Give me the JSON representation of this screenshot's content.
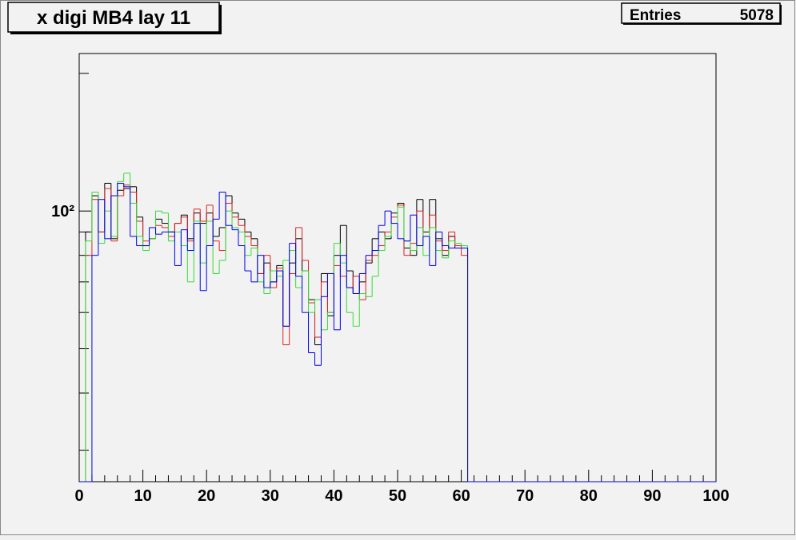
{
  "chart_data": {
    "type": "histogram",
    "title": "x digi MB4 lay 11",
    "stats": {
      "label": "Entries",
      "value": 5078
    },
    "bins": [
      0,
      1,
      2,
      3,
      4,
      5,
      6,
      7,
      8,
      9,
      10,
      11,
      12,
      13,
      14,
      15,
      16,
      17,
      18,
      19,
      20,
      21,
      22,
      23,
      24,
      25,
      26,
      27,
      28,
      29,
      30,
      31,
      32,
      33,
      34,
      35,
      36,
      37,
      38,
      39,
      40,
      41,
      42,
      43,
      44,
      45,
      46,
      47,
      48,
      49,
      50,
      51,
      52,
      53,
      54,
      55,
      56,
      57,
      58,
      59,
      60,
      61,
      62,
      63,
      64,
      65,
      66,
      67,
      68,
      69,
      70,
      71,
      72,
      73,
      74,
      75,
      76,
      77,
      78,
      79,
      80,
      81,
      82,
      83,
      84,
      85,
      86,
      87,
      88,
      89,
      90,
      91,
      92,
      93,
      94,
      95,
      96,
      97,
      98,
      99,
      100
    ],
    "series": [
      {
        "color": "#000000",
        "values": [
          0,
          90,
          108,
          90,
          115,
          87,
          111,
          112,
          113,
          97,
          84,
          87,
          96,
          94,
          90,
          94,
          98,
          87,
          99,
          94,
          99,
          88,
          92,
          108,
          99,
          96,
          90,
          87,
          73,
          77,
          70,
          76,
          56,
          77,
          87,
          74,
          64,
          51,
          73,
          59,
          80,
          93,
          74,
          66,
          70,
          77,
          87,
          90,
          87,
          99,
          104,
          83,
          80,
          106,
          90,
          106,
          87,
          80,
          88,
          83,
          83,
          0,
          0,
          0,
          0,
          0,
          0,
          0,
          0,
          0,
          0,
          0,
          0,
          0,
          0,
          0,
          0,
          0,
          0,
          0,
          0,
          0,
          0,
          0,
          0,
          0,
          0,
          0,
          0,
          0,
          0,
          0,
          0,
          0,
          0,
          0,
          0,
          0,
          0,
          0
        ]
      },
      {
        "color": "#dd2222",
        "values": [
          0,
          80,
          106,
          90,
          112,
          86,
          108,
          114,
          110,
          95,
          86,
          87,
          93,
          92,
          88,
          94,
          97,
          86,
          101,
          95,
          103,
          86,
          82,
          104,
          97,
          93,
          88,
          84,
          73,
          80,
          68,
          75,
          51,
          73,
          92,
          78,
          63,
          53,
          70,
          60,
          76,
          72,
          68,
          72,
          64,
          78,
          80,
          84,
          90,
          97,
          103,
          80,
          85,
          100,
          88,
          98,
          86,
          82,
          90,
          84,
          80,
          0,
          0,
          0,
          0,
          0,
          0,
          0,
          0,
          0,
          0,
          0,
          0,
          0,
          0,
          0,
          0,
          0,
          0,
          0,
          0,
          0,
          0,
          0,
          0,
          0,
          0,
          0,
          0,
          0,
          0,
          0,
          0,
          0,
          0,
          0,
          0,
          0,
          0,
          0
        ]
      },
      {
        "color": "#33dd33",
        "values": [
          0,
          86,
          110,
          85,
          100,
          88,
          116,
          121,
          104,
          88,
          82,
          87,
          100,
          99,
          86,
          90,
          84,
          70,
          95,
          77,
          95,
          73,
          78,
          100,
          92,
          90,
          80,
          83,
          70,
          66,
          74,
          72,
          78,
          82,
          68,
          74,
          60,
          64,
          55,
          60,
          85,
          77,
          60,
          56,
          66,
          65,
          72,
          82,
          88,
          94,
          102,
          86,
          82,
          92,
          80,
          92,
          82,
          79,
          86,
          85,
          84,
          0,
          0,
          0,
          0,
          0,
          0,
          0,
          0,
          0,
          0,
          0,
          0,
          0,
          0,
          0,
          0,
          0,
          0,
          0,
          0,
          0,
          0,
          0,
          0,
          0,
          0,
          0,
          0,
          0,
          0,
          0,
          0,
          0,
          0,
          0,
          0,
          0,
          0,
          0
        ]
      },
      {
        "color": "#0000ee",
        "values": [
          0,
          0,
          80,
          106,
          87,
          108,
          115,
          113,
          88,
          84,
          84,
          92,
          89,
          90,
          90,
          76,
          91,
          82,
          94,
          67,
          84,
          96,
          110,
          93,
          91,
          84,
          74,
          70,
          80,
          68,
          70,
          74,
          56,
          85,
          72,
          60,
          49,
          46,
          65,
          73,
          55,
          80,
          68,
          66,
          73,
          80,
          82,
          93,
          100,
          94,
          87,
          86,
          98,
          84,
          88,
          76,
          90,
          84,
          83,
          83,
          83,
          0,
          0,
          0,
          0,
          0,
          0,
          0,
          0,
          0,
          0,
          0,
          0,
          0,
          0,
          0,
          0,
          0,
          0,
          0,
          0,
          0,
          0,
          0,
          0,
          0,
          0,
          0,
          0,
          0,
          0,
          0,
          0,
          0,
          0,
          0,
          0,
          0,
          0,
          0
        ]
      }
    ],
    "xlim": [
      0,
      100
    ],
    "xticks": [
      0,
      10,
      20,
      30,
      40,
      50,
      60,
      70,
      80,
      90,
      100
    ],
    "xminor_step": 2,
    "ylim": [
      25.6,
      221
    ],
    "ylog": true,
    "yticks": [
      {
        "value": 100,
        "label": "10²"
      }
    ],
    "yminorticks": [
      30,
      40,
      50,
      60,
      70,
      80,
      90,
      200
    ]
  }
}
